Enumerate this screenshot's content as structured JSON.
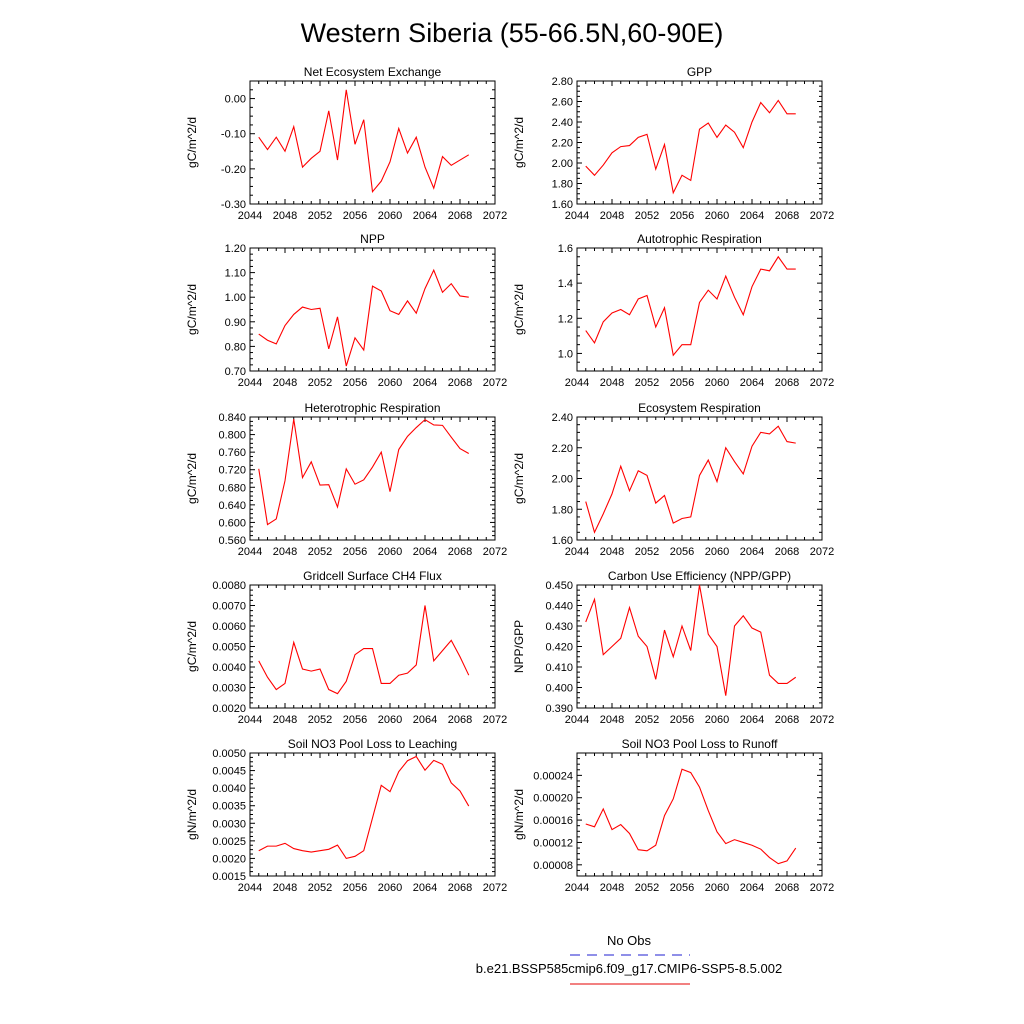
{
  "figure": {
    "title": "Western Siberia (55-66.5N,60-90E)"
  },
  "legend": {
    "items": [
      {
        "label": "No Obs",
        "color": "#1f1fd1",
        "style": "dashed"
      },
      {
        "label": "b.e21.BSSP585cmip6.f09_g17.CMIP6-SSP5-8.5.002",
        "color": "#e60000",
        "style": "solid"
      }
    ]
  },
  "colors": {
    "series": "#ff0000",
    "axis": "#000000"
  },
  "chart_data": [
    {
      "type": "line",
      "title": "Net Ecosystem Exchange",
      "ylabel": "gC/m^2/d",
      "xlim": [
        2044,
        2072
      ],
      "xticks": [
        2044,
        2048,
        2052,
        2056,
        2060,
        2064,
        2068,
        2072
      ],
      "ylim": [
        -0.3,
        0.05
      ],
      "yticks": [
        -0.3,
        -0.2,
        -0.1,
        0.0
      ],
      "ytick_labels": [
        "-0.30",
        "-0.20",
        "-0.10",
        "0.00"
      ],
      "x": [
        2045,
        2046,
        2047,
        2048,
        2049,
        2050,
        2051,
        2052,
        2053,
        2054,
        2055,
        2056,
        2057,
        2058,
        2059,
        2060,
        2061,
        2062,
        2063,
        2064,
        2065,
        2066,
        2067,
        2068,
        2069
      ],
      "series": [
        {
          "values": [
            -0.11,
            -0.145,
            -0.11,
            -0.15,
            -0.08,
            -0.195,
            -0.17,
            -0.15,
            -0.035,
            -0.175,
            0.025,
            -0.13,
            -0.06,
            -0.265,
            -0.235,
            -0.18,
            -0.085,
            -0.155,
            -0.11,
            -0.195,
            -0.255,
            -0.165,
            -0.19,
            -0.175,
            -0.16
          ]
        }
      ]
    },
    {
      "type": "line",
      "title": "GPP",
      "ylabel": "gC/m^2/d",
      "xlim": [
        2044,
        2072
      ],
      "xticks": [
        2044,
        2048,
        2052,
        2056,
        2060,
        2064,
        2068,
        2072
      ],
      "ylim": [
        1.6,
        2.8
      ],
      "yticks": [
        1.6,
        1.8,
        2.0,
        2.2,
        2.4,
        2.6,
        2.8
      ],
      "ytick_labels": [
        "1.60",
        "1.80",
        "2.00",
        "2.20",
        "2.40",
        "2.60",
        "2.80"
      ],
      "x": [
        2045,
        2046,
        2047,
        2048,
        2049,
        2050,
        2051,
        2052,
        2053,
        2054,
        2055,
        2056,
        2057,
        2058,
        2059,
        2060,
        2061,
        2062,
        2063,
        2064,
        2065,
        2066,
        2067,
        2068,
        2069
      ],
      "series": [
        {
          "values": [
            1.97,
            1.88,
            1.98,
            2.1,
            2.16,
            2.17,
            2.25,
            2.28,
            1.94,
            2.18,
            1.71,
            1.88,
            1.83,
            2.33,
            2.39,
            2.25,
            2.37,
            2.3,
            2.15,
            2.4,
            2.59,
            2.49,
            2.61,
            2.48,
            2.48
          ]
        }
      ]
    },
    {
      "type": "line",
      "title": "NPP",
      "ylabel": "gC/m^2/d",
      "xlim": [
        2044,
        2072
      ],
      "xticks": [
        2044,
        2048,
        2052,
        2056,
        2060,
        2064,
        2068,
        2072
      ],
      "ylim": [
        0.7,
        1.2
      ],
      "yticks": [
        0.7,
        0.8,
        0.9,
        1.0,
        1.1,
        1.2
      ],
      "ytick_labels": [
        "0.70",
        "0.80",
        "0.90",
        "1.00",
        "1.10",
        "1.20"
      ],
      "x": [
        2045,
        2046,
        2047,
        2048,
        2049,
        2050,
        2051,
        2052,
        2053,
        2054,
        2055,
        2056,
        2057,
        2058,
        2059,
        2060,
        2061,
        2062,
        2063,
        2064,
        2065,
        2066,
        2067,
        2068,
        2069
      ],
      "series": [
        {
          "values": [
            0.85,
            0.825,
            0.81,
            0.885,
            0.93,
            0.96,
            0.95,
            0.955,
            0.79,
            0.92,
            0.72,
            0.835,
            0.785,
            1.045,
            1.025,
            0.945,
            0.93,
            0.985,
            0.935,
            1.035,
            1.11,
            1.02,
            1.055,
            1.005,
            1.0
          ]
        }
      ]
    },
    {
      "type": "line",
      "title": "Autotrophic Respiration",
      "ylabel": "gC/m^2/d",
      "xlim": [
        2044,
        2072
      ],
      "xticks": [
        2044,
        2048,
        2052,
        2056,
        2060,
        2064,
        2068,
        2072
      ],
      "ylim": [
        0.9,
        1.6
      ],
      "yticks": [
        1.0,
        1.2,
        1.4,
        1.6
      ],
      "ytick_labels": [
        "1.0",
        "1.2",
        "1.4",
        "1.6"
      ],
      "x": [
        2045,
        2046,
        2047,
        2048,
        2049,
        2050,
        2051,
        2052,
        2053,
        2054,
        2055,
        2056,
        2057,
        2058,
        2059,
        2060,
        2061,
        2062,
        2063,
        2064,
        2065,
        2066,
        2067,
        2068,
        2069
      ],
      "series": [
        {
          "values": [
            1.13,
            1.06,
            1.18,
            1.23,
            1.25,
            1.22,
            1.31,
            1.33,
            1.15,
            1.26,
            0.99,
            1.05,
            1.05,
            1.29,
            1.36,
            1.31,
            1.44,
            1.32,
            1.22,
            1.38,
            1.48,
            1.47,
            1.55,
            1.48,
            1.48
          ]
        }
      ]
    },
    {
      "type": "line",
      "title": "Heterotrophic Respiration",
      "ylabel": "gC/m^2/d",
      "xlim": [
        2044,
        2072
      ],
      "xticks": [
        2044,
        2048,
        2052,
        2056,
        2060,
        2064,
        2068,
        2072
      ],
      "ylim": [
        0.56,
        0.84
      ],
      "yticks": [
        0.56,
        0.6,
        0.64,
        0.68,
        0.72,
        0.76,
        0.8,
        0.84
      ],
      "ytick_labels": [
        "0.560",
        "0.600",
        "0.640",
        "0.680",
        "0.720",
        "0.760",
        "0.800",
        "0.840"
      ],
      "x": [
        2045,
        2046,
        2047,
        2048,
        2049,
        2050,
        2051,
        2052,
        2053,
        2054,
        2055,
        2056,
        2057,
        2058,
        2059,
        2060,
        2061,
        2062,
        2063,
        2064,
        2065,
        2066,
        2067,
        2068,
        2069
      ],
      "series": [
        {
          "values": [
            0.722,
            0.595,
            0.608,
            0.695,
            0.835,
            0.702,
            0.738,
            0.685,
            0.686,
            0.635,
            0.722,
            0.687,
            0.697,
            0.726,
            0.76,
            0.67,
            0.766,
            0.796,
            0.816,
            0.834,
            0.822,
            0.821,
            0.794,
            0.768,
            0.757
          ]
        }
      ]
    },
    {
      "type": "line",
      "title": "Ecosystem Respiration",
      "ylabel": "gC/m^2/d",
      "xlim": [
        2044,
        2072
      ],
      "xticks": [
        2044,
        2048,
        2052,
        2056,
        2060,
        2064,
        2068,
        2072
      ],
      "ylim": [
        1.6,
        2.4
      ],
      "yticks": [
        1.6,
        1.8,
        2.0,
        2.2,
        2.4
      ],
      "ytick_labels": [
        "1.60",
        "1.80",
        "2.00",
        "2.20",
        "2.40"
      ],
      "x": [
        2045,
        2046,
        2047,
        2048,
        2049,
        2050,
        2051,
        2052,
        2053,
        2054,
        2055,
        2056,
        2057,
        2058,
        2059,
        2060,
        2061,
        2062,
        2063,
        2064,
        2065,
        2066,
        2067,
        2068,
        2069
      ],
      "series": [
        {
          "values": [
            1.85,
            1.65,
            1.77,
            1.9,
            2.08,
            1.92,
            2.05,
            2.02,
            1.84,
            1.89,
            1.71,
            1.74,
            1.75,
            2.02,
            2.12,
            1.98,
            2.2,
            2.11,
            2.03,
            2.21,
            2.3,
            2.29,
            2.34,
            2.24,
            2.23
          ]
        }
      ]
    },
    {
      "type": "line",
      "title": "Gridcell Surface CH4 Flux",
      "ylabel": "gC/m^2/d",
      "xlim": [
        2044,
        2072
      ],
      "xticks": [
        2044,
        2048,
        2052,
        2056,
        2060,
        2064,
        2068,
        2072
      ],
      "ylim": [
        0.002,
        0.008
      ],
      "yticks": [
        0.002,
        0.003,
        0.004,
        0.005,
        0.006,
        0.007,
        0.008
      ],
      "ytick_labels": [
        "0.0020",
        "0.0030",
        "0.0040",
        "0.0050",
        "0.0060",
        "0.0070",
        "0.0080"
      ],
      "x": [
        2045,
        2046,
        2047,
        2048,
        2049,
        2050,
        2051,
        2052,
        2053,
        2054,
        2055,
        2056,
        2057,
        2058,
        2059,
        2060,
        2061,
        2062,
        2063,
        2064,
        2065,
        2066,
        2067,
        2068,
        2069
      ],
      "series": [
        {
          "values": [
            0.0043,
            0.0035,
            0.0029,
            0.0032,
            0.0052,
            0.0039,
            0.0038,
            0.0039,
            0.0029,
            0.0027,
            0.0033,
            0.0046,
            0.0049,
            0.0049,
            0.0032,
            0.0032,
            0.0036,
            0.0037,
            0.0041,
            0.007,
            0.0043,
            0.0048,
            0.0053,
            0.0045,
            0.0036
          ]
        }
      ]
    },
    {
      "type": "line",
      "title": "Carbon Use Efficiency (NPP/GPP)",
      "ylabel": "NPP/GPP",
      "xlim": [
        2044,
        2072
      ],
      "xticks": [
        2044,
        2048,
        2052,
        2056,
        2060,
        2064,
        2068,
        2072
      ],
      "ylim": [
        0.39,
        0.45
      ],
      "yticks": [
        0.39,
        0.4,
        0.41,
        0.42,
        0.43,
        0.44,
        0.45
      ],
      "ytick_labels": [
        "0.390",
        "0.400",
        "0.410",
        "0.420",
        "0.430",
        "0.440",
        "0.450"
      ],
      "x": [
        2045,
        2046,
        2047,
        2048,
        2049,
        2050,
        2051,
        2052,
        2053,
        2054,
        2055,
        2056,
        2057,
        2058,
        2059,
        2060,
        2061,
        2062,
        2063,
        2064,
        2065,
        2066,
        2067,
        2068,
        2069
      ],
      "series": [
        {
          "values": [
            0.432,
            0.443,
            0.416,
            0.42,
            0.424,
            0.439,
            0.425,
            0.42,
            0.404,
            0.428,
            0.415,
            0.43,
            0.418,
            0.45,
            0.426,
            0.42,
            0.396,
            0.43,
            0.435,
            0.429,
            0.427,
            0.406,
            0.402,
            0.402,
            0.405
          ]
        }
      ]
    },
    {
      "type": "line",
      "title": "Soil NO3 Pool Loss to Leaching",
      "ylabel": "gN/m^2/d",
      "xlim": [
        2044,
        2072
      ],
      "xticks": [
        2044,
        2048,
        2052,
        2056,
        2060,
        2064,
        2068,
        2072
      ],
      "ylim": [
        0.0015,
        0.005
      ],
      "yticks": [
        0.0015,
        0.002,
        0.0025,
        0.003,
        0.0035,
        0.004,
        0.0045,
        0.005
      ],
      "ytick_labels": [
        "0.0015",
        "0.0020",
        "0.0025",
        "0.0030",
        "0.0035",
        "0.0040",
        "0.0045",
        "0.0050"
      ],
      "x": [
        2045,
        2046,
        2047,
        2048,
        2049,
        2050,
        2051,
        2052,
        2053,
        2054,
        2055,
        2056,
        2057,
        2058,
        2059,
        2060,
        2061,
        2062,
        2063,
        2064,
        2065,
        2066,
        2067,
        2068,
        2069
      ],
      "series": [
        {
          "values": [
            0.00222,
            0.00235,
            0.00235,
            0.00243,
            0.00228,
            0.00222,
            0.00218,
            0.00222,
            0.00226,
            0.00238,
            0.002,
            0.00206,
            0.00222,
            0.00315,
            0.00408,
            0.0039,
            0.00447,
            0.00478,
            0.0049,
            0.00451,
            0.00479,
            0.00468,
            0.00415,
            0.00392,
            0.00349
          ]
        }
      ]
    },
    {
      "type": "line",
      "title": "Soil NO3 Pool Loss to Runoff",
      "ylabel": "gN/m^2/d",
      "xlim": [
        2044,
        2072
      ],
      "xticks": [
        2044,
        2048,
        2052,
        2056,
        2060,
        2064,
        2068,
        2072
      ],
      "ylim": [
        6e-05,
        0.00028
      ],
      "yticks": [
        8e-05,
        0.00012,
        0.00016,
        0.0002,
        0.00024
      ],
      "ytick_labels": [
        "0.00008",
        "0.00012",
        "0.00016",
        "0.00020",
        "0.00024"
      ],
      "x": [
        2045,
        2046,
        2047,
        2048,
        2049,
        2050,
        2051,
        2052,
        2053,
        2054,
        2055,
        2056,
        2057,
        2058,
        2059,
        2060,
        2061,
        2062,
        2063,
        2064,
        2065,
        2066,
        2067,
        2068,
        2069
      ],
      "series": [
        {
          "values": [
            0.000153,
            0.000148,
            0.00018,
            0.000143,
            0.000152,
            0.000136,
            0.000107,
            0.000105,
            0.000115,
            0.000168,
            0.000198,
            0.000251,
            0.000245,
            0.000219,
            0.000177,
            0.000139,
            0.000118,
            0.000125,
            0.00012,
            0.000115,
            0.000108,
            9.3e-05,
            8.2e-05,
            8.7e-05,
            0.00011
          ]
        }
      ]
    }
  ]
}
